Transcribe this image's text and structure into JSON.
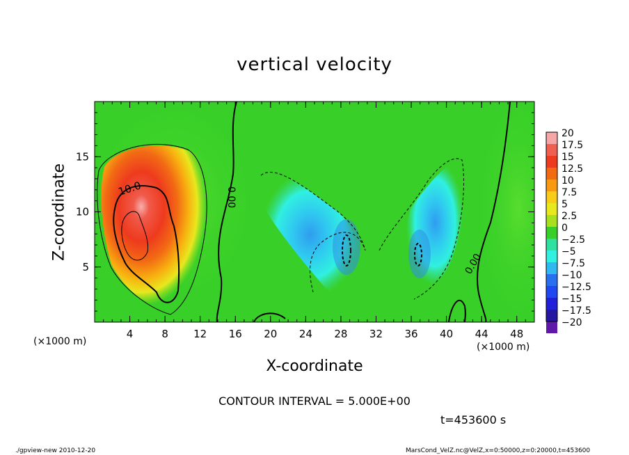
{
  "title": "vertical velocity",
  "xlabel": "X-coordinate",
  "ylabel": "Z-coordinate",
  "x_unit_left": "(×1000 m)",
  "x_unit_right": "(×1000 m)",
  "contour_interval_text": "CONTOUR INTERVAL = 5.000E+00",
  "time_text": "t=453600 s",
  "footer_left": "./gpview-new  2010-12-20",
  "footer_right": "MarsCond_VelZ.nc@VelZ,x=0:50000,z=0:20000,t=453600",
  "chart_data": {
    "type": "heatmap",
    "title": "vertical velocity",
    "xlabel": "X-coordinate",
    "ylabel": "Z-coordinate",
    "xlim": [
      0,
      50
    ],
    "ylim": [
      0,
      20
    ],
    "x_ticks": [
      4,
      8,
      12,
      16,
      20,
      24,
      28,
      32,
      36,
      40,
      44,
      48
    ],
    "y_ticks": [
      5,
      10,
      15
    ],
    "colorbar": {
      "levels": [
        20,
        17.5,
        15,
        12.5,
        10,
        7.5,
        5,
        2.5,
        0,
        -2.5,
        -5,
        -7.5,
        -10,
        -12.5,
        -15,
        -17.5,
        -20
      ],
      "labels": [
        "20",
        "17.5",
        "15",
        "12.5",
        "10",
        "7.5",
        "5",
        "2.5",
        "0",
        "−2.5",
        "−5",
        "−7.5",
        "−10",
        "−12.5",
        "−15",
        "−17.5",
        "−20"
      ],
      "colors": [
        "#f7a6a6",
        "#f06050",
        "#ee3a1e",
        "#f26a14",
        "#f89a10",
        "#f8cc18",
        "#e8e81e",
        "#a8e020",
        "#38d028",
        "#30e0a0",
        "#30f0e0",
        "#30b8f0",
        "#2870f0",
        "#2048f0",
        "#2020d8",
        "#2418a0",
        "#6018a8"
      ]
    },
    "contour_labels": [
      "10.0",
      "0.00",
      "0.00"
    ],
    "features": [
      {
        "kind": "updraft",
        "x_center": 4.5,
        "z_center": 8,
        "peak": 20
      },
      {
        "kind": "downdraft",
        "x_center": 29,
        "z_center": 7,
        "min": -8
      },
      {
        "kind": "downdraft",
        "x_center": 37,
        "z_center": 7,
        "min": -8
      }
    ]
  }
}
